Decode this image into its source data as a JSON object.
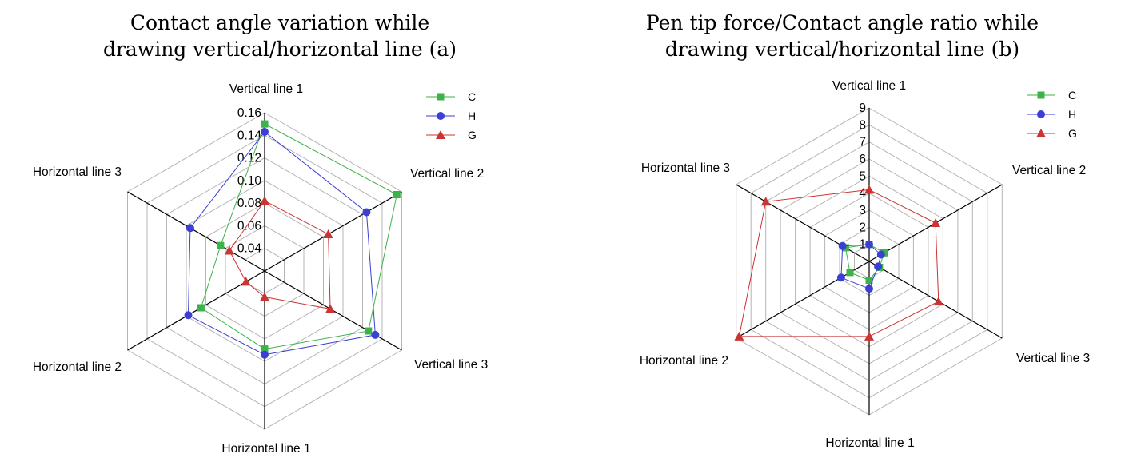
{
  "chart_data": [
    {
      "type": "radar",
      "title": [
        "Contact angle variation while",
        "drawing vertical/horizontal line (a)"
      ],
      "axes": [
        "Vertical line 1",
        "Vertical line 2",
        "Vertical line 3",
        "Horizontal line 1",
        "Horizontal line 2",
        "Horizontal line 3"
      ],
      "range": [
        0.02,
        0.16
      ],
      "ticks": [
        0.04,
        0.06,
        0.08,
        0.1,
        0.12,
        0.14,
        0.16
      ],
      "tick_labels": [
        "0.04",
        "0.06",
        "0.08",
        "0.10",
        "0.12",
        "0.14",
        "0.16"
      ],
      "grid_levels": [
        0.02,
        0.04,
        0.06,
        0.08,
        0.1,
        0.12,
        0.14,
        0.16
      ],
      "legend_position": "top-right",
      "series": [
        {
          "name": "C",
          "color": "#3cb34a",
          "marker": "square",
          "values": [
            0.15,
            0.155,
            0.126,
            0.089,
            0.085,
            0.065
          ]
        },
        {
          "name": "H",
          "color": "#3b3fd6",
          "marker": "circle",
          "values": [
            0.143,
            0.124,
            0.133,
            0.094,
            0.098,
            0.096
          ]
        },
        {
          "name": "G",
          "color": "#cc3333",
          "marker": "triangle",
          "values": [
            0.082,
            0.085,
            0.087,
            0.043,
            0.039,
            0.056
          ]
        }
      ]
    },
    {
      "type": "radar",
      "title": [
        "Pen tip force/Contact angle ratio while",
        "drawing vertical/horizontal line (b)"
      ],
      "axes": [
        "Vertical line 1",
        "Vertical line 2",
        "Vertical line 3",
        "Horizontal line 1",
        "Horizontal line 2",
        "Horizontal line 3"
      ],
      "range": [
        0,
        9
      ],
      "ticks": [
        1,
        2,
        3,
        4,
        5,
        6,
        7,
        8,
        9
      ],
      "tick_labels": [
        "1",
        "2",
        "3",
        "4",
        "5",
        "6",
        "7",
        "8",
        "9"
      ],
      "grid_levels": [
        1,
        2,
        3,
        4,
        5,
        6,
        7,
        8,
        9
      ],
      "legend_position": "top-right",
      "series": [
        {
          "name": "C",
          "color": "#3cb34a",
          "marker": "square",
          "values": [
            1.0,
            1.0,
            0.7,
            1.1,
            1.3,
            1.6
          ]
        },
        {
          "name": "H",
          "color": "#3b3fd6",
          "marker": "circle",
          "values": [
            1.0,
            0.8,
            0.6,
            1.6,
            1.9,
            1.8
          ]
        },
        {
          "name": "G",
          "color": "#cc3333",
          "marker": "triangle",
          "values": [
            4.2,
            4.5,
            4.7,
            4.4,
            8.8,
            7.0
          ]
        }
      ]
    }
  ]
}
